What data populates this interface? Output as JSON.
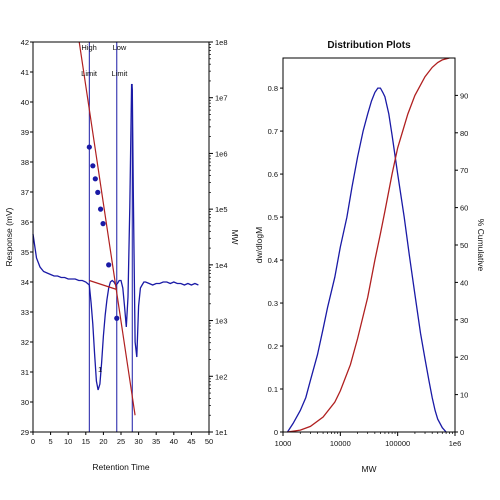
{
  "colors": {
    "series_main": "#1a1aa6",
    "series_fit": "#b02020",
    "marker": "#1a1aa6",
    "frame": "#000000"
  },
  "chart_data": [
    {
      "type": "line",
      "title": "",
      "xlabel": "Retention Time",
      "ylabel": "Response (mV)",
      "y2label": "MW",
      "xlim": [
        0,
        50
      ],
      "ylim": [
        29,
        42
      ],
      "y2scale": "log",
      "y2lim": [
        10,
        100000000
      ],
      "x_ticks": [
        "0",
        "5",
        "10",
        "15",
        "20",
        "25",
        "30",
        "35",
        "40",
        "45",
        "50"
      ],
      "y_ticks": [
        "29",
        "30",
        "31",
        "32",
        "33",
        "34",
        "35",
        "36",
        "37",
        "38",
        "39",
        "40",
        "41",
        "42"
      ],
      "y2_ticks": [
        "1e1",
        "1e2",
        "1e3",
        "1e4",
        "1e5",
        "1e6",
        "1e7",
        "1e8"
      ],
      "annotations": [
        {
          "text": "High",
          "x": 16.5
        },
        {
          "text": "Limit",
          "x": 16.5
        },
        {
          "text": "Low",
          "x": 24.0
        },
        {
          "text": "Limit",
          "x": 24.0
        },
        {
          "text": "1",
          "x": 18.5
        }
      ],
      "limit_lines_x": [
        16.0,
        23.8
      ],
      "peak_line_x": 28.2,
      "series": [
        {
          "x": [
            0,
            1,
            2,
            3,
            4,
            5,
            6,
            7,
            8,
            9,
            10,
            11,
            12,
            13,
            14,
            15,
            16,
            16.5,
            17,
            17.5,
            18,
            18.5,
            19,
            19.5,
            20,
            20.5,
            21,
            21.5,
            22,
            22.5,
            23,
            23.5,
            24,
            24.5,
            25,
            25.5,
            26,
            26.5,
            27,
            27.5,
            28,
            28.2,
            28.5,
            29,
            29.5,
            30,
            30.5,
            31,
            31.5,
            32,
            33,
            34,
            35,
            36,
            37,
            38,
            39,
            40,
            41,
            42,
            43,
            44,
            45,
            46,
            47
          ],
          "y": [
            35.6,
            34.8,
            34.5,
            34.35,
            34.3,
            34.25,
            34.2,
            34.2,
            34.15,
            34.15,
            34.1,
            34.1,
            34.1,
            34.05,
            34.05,
            34.0,
            33.9,
            33.3,
            32.6,
            31.6,
            30.7,
            30.4,
            30.6,
            31.3,
            32.2,
            32.9,
            33.4,
            33.8,
            34.0,
            34.05,
            34.0,
            33.9,
            33.95,
            34.05,
            34.05,
            33.8,
            33.2,
            32.5,
            33.5,
            36.5,
            40.6,
            40.4,
            37.0,
            32.0,
            31.5,
            33.2,
            33.8,
            33.9,
            34.0,
            34.0,
            33.95,
            33.9,
            33.95,
            33.95,
            34.0,
            34.0,
            33.95,
            34.0,
            33.95,
            33.95,
            33.9,
            33.95,
            33.9,
            33.95,
            33.9
          ]
        },
        {
          "y_axis": "y2",
          "x": [
            12,
            29
          ],
          "y": [
            300000000,
            20
          ]
        },
        {
          "y_axis": "y2",
          "x": [
            16.0,
            17.0,
            17.7,
            18.4,
            19.2,
            19.9,
            21.5,
            23.8
          ],
          "y": [
            1300000,
            600000,
            350000,
            200000,
            100000,
            55000,
            10000,
            1100
          ]
        },
        {
          "x": [
            16.0,
            23.8
          ],
          "y": [
            34.05,
            33.75
          ]
        }
      ]
    },
    {
      "type": "line",
      "title": "Distribution Plots",
      "xlabel": "MW",
      "ylabel": "dw/dlogM",
      "y2label": "% Cumulative",
      "xscale": "log",
      "xlim": [
        1000,
        1000000
      ],
      "ylim": [
        0,
        0.87
      ],
      "y2lim": [
        0,
        100
      ],
      "x_ticks": [
        "1000",
        "10000",
        "100000",
        "1e6"
      ],
      "y_ticks": [
        "0",
        "0.1",
        "0.2",
        "0.3",
        "0.4",
        "0.5",
        "0.6",
        "0.7",
        "0.8"
      ],
      "y2_ticks": [
        "0",
        "10",
        "20",
        "30",
        "40",
        "50",
        "60",
        "70",
        "80",
        "90"
      ],
      "series": [
        {
          "x": [
            1200,
            1500,
            2000,
            2500,
            3000,
            4000,
            5000,
            6000,
            8000,
            10000,
            13000,
            16000,
            20000,
            25000,
            30000,
            35000,
            40000,
            45000,
            50000,
            55000,
            60000,
            70000,
            80000,
            100000,
            130000,
            160000,
            200000,
            250000,
            300000,
            350000,
            400000,
            450000,
            500000,
            600000,
            700000
          ],
          "y": [
            0.0,
            0.02,
            0.05,
            0.08,
            0.12,
            0.18,
            0.24,
            0.29,
            0.36,
            0.43,
            0.5,
            0.57,
            0.64,
            0.7,
            0.74,
            0.77,
            0.79,
            0.8,
            0.8,
            0.79,
            0.78,
            0.74,
            0.69,
            0.6,
            0.5,
            0.41,
            0.32,
            0.23,
            0.17,
            0.12,
            0.08,
            0.05,
            0.03,
            0.01,
            0.0
          ]
        },
        {
          "y_axis": "y2",
          "x": [
            1200,
            2000,
            3000,
            5000,
            8000,
            10000,
            15000,
            20000,
            30000,
            40000,
            50000,
            60000,
            80000,
            100000,
            150000,
            200000,
            300000,
            400000,
            500000,
            600000,
            800000
          ],
          "y": [
            0,
            0.5,
            1.5,
            4,
            8,
            11,
            18,
            25,
            36,
            46,
            53,
            59,
            69,
            76,
            85,
            90,
            95,
            97.5,
            98.8,
            99.5,
            100
          ]
        }
      ]
    }
  ]
}
